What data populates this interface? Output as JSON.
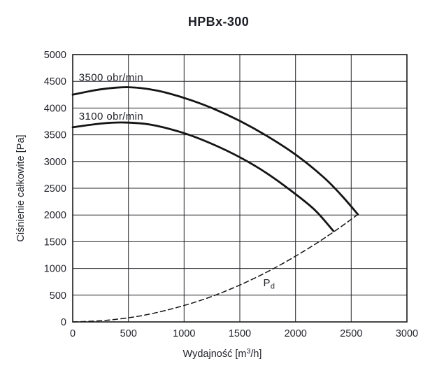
{
  "chart_data": {
    "type": "line",
    "title": "HPBx-300",
    "xlabel": "Wydajność [m³/h]",
    "ylabel": "Ciśnienie całkowite [Pa]",
    "xlim": [
      0,
      3000
    ],
    "ylim": [
      0,
      5000
    ],
    "xticks": [
      0,
      500,
      1000,
      1500,
      2000,
      2500,
      3000
    ],
    "yticks": [
      0,
      500,
      1000,
      1500,
      2000,
      2500,
      3000,
      3500,
      4000,
      4500,
      5000
    ],
    "grid": true,
    "legend_position": "inline-curve-labels",
    "colors": {
      "curve": "#141414",
      "grid": "#26262b",
      "border": "#1a1a1a",
      "text": "#23242c",
      "background": "#ffffff"
    },
    "series": [
      {
        "name": "3500 obr/min",
        "line_style": "solid",
        "points": [
          [
            0,
            4250
          ],
          [
            250,
            4350
          ],
          [
            500,
            4390
          ],
          [
            750,
            4330
          ],
          [
            1000,
            4190
          ],
          [
            1250,
            4000
          ],
          [
            1500,
            3760
          ],
          [
            1750,
            3470
          ],
          [
            2000,
            3130
          ],
          [
            2250,
            2710
          ],
          [
            2420,
            2350
          ],
          [
            2560,
            2010
          ]
        ]
      },
      {
        "name": "3100 obr/min",
        "line_style": "solid",
        "points": [
          [
            0,
            3640
          ],
          [
            250,
            3710
          ],
          [
            450,
            3730
          ],
          [
            700,
            3690
          ],
          [
            1000,
            3530
          ],
          [
            1250,
            3330
          ],
          [
            1500,
            3080
          ],
          [
            1750,
            2770
          ],
          [
            2000,
            2390
          ],
          [
            2180,
            2080
          ],
          [
            2340,
            1700
          ]
        ]
      },
      {
        "name": "Pd",
        "line_style": "dashed",
        "points": [
          [
            0,
            0
          ],
          [
            300,
            30
          ],
          [
            600,
            110
          ],
          [
            900,
            250
          ],
          [
            1200,
            440
          ],
          [
            1500,
            690
          ],
          [
            1800,
            995
          ],
          [
            2100,
            1355
          ],
          [
            2350,
            1695
          ],
          [
            2560,
            2010
          ]
        ]
      }
    ],
    "annotations": [
      {
        "text": "3500 obr/min",
        "x": 55,
        "y": 4510
      },
      {
        "text": "3100 obr/min",
        "x": 55,
        "y": 3780
      },
      {
        "text": "P",
        "subscript": "d",
        "x": 1710,
        "y": 670
      }
    ]
  }
}
